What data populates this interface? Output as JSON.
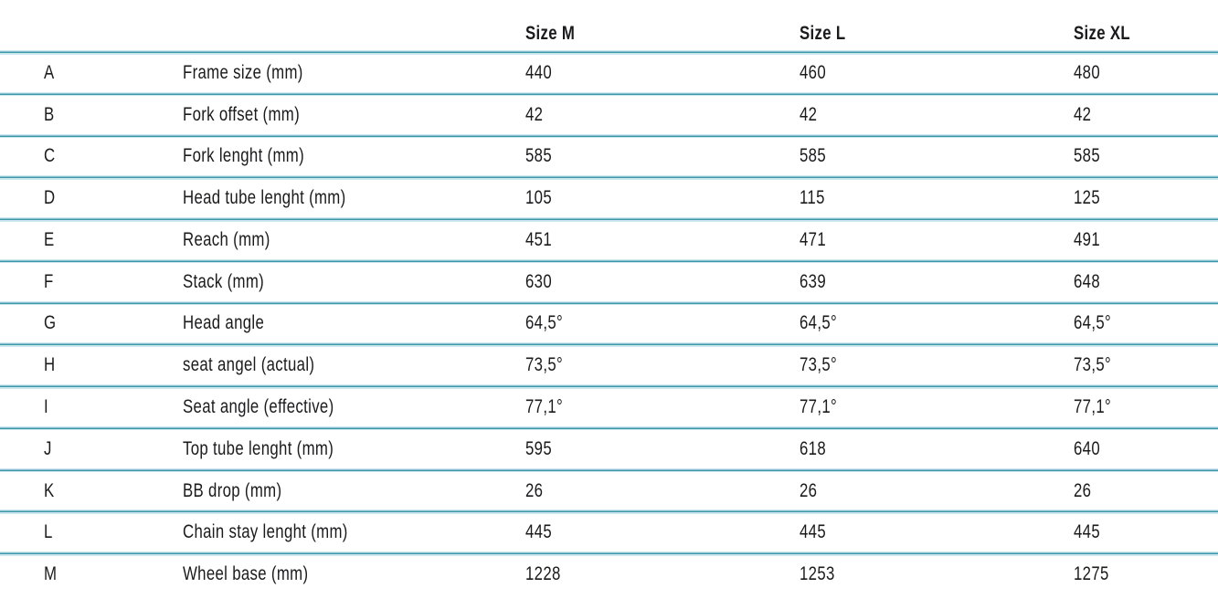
{
  "chart_data": {
    "type": "table",
    "columns": [
      "",
      "",
      "Size M",
      "Size L",
      "Size XL"
    ],
    "rows": [
      [
        "A",
        "Frame size (mm)",
        "440",
        "460",
        "480"
      ],
      [
        "B",
        "Fork offset (mm)",
        "42",
        "42",
        "42"
      ],
      [
        "C",
        "Fork lenght (mm)",
        "585",
        "585",
        "585"
      ],
      [
        "D",
        "Head tube lenght (mm)",
        "105",
        "115",
        "125"
      ],
      [
        "E",
        "Reach (mm)",
        "451",
        "471",
        "491"
      ],
      [
        "F",
        "Stack (mm)",
        "630",
        "639",
        "648"
      ],
      [
        "G",
        "Head angle",
        "64,5°",
        "64,5°",
        "64,5°"
      ],
      [
        "H",
        "seat angel (actual)",
        "73,5°",
        "73,5°",
        "73,5°"
      ],
      [
        "I",
        "Seat angle (effective)",
        "77,1°",
        "77,1°",
        "77,1°"
      ],
      [
        "J",
        "Top tube lenght (mm)",
        "595",
        "618",
        "640"
      ],
      [
        "K",
        "BB drop (mm)",
        "26",
        "26",
        "26"
      ],
      [
        "L",
        "Chain stay lenght (mm)",
        "445",
        "445",
        "445"
      ],
      [
        "M",
        "Wheel base (mm)",
        "1228",
        "1253",
        "1275"
      ]
    ],
    "title": "",
    "layout": {
      "grid": "horizontal-dividers-only",
      "header_bold": true,
      "bottom_border": false
    }
  },
  "colors": {
    "divider": "#3f96ab",
    "halo": "#cbe8ef",
    "text": "#1b1b1d",
    "background": "#ffffff"
  }
}
